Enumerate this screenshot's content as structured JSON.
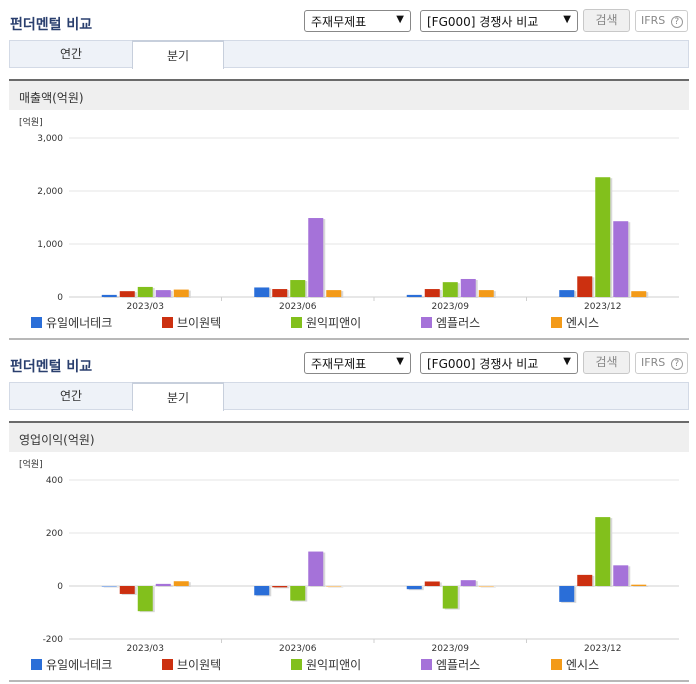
{
  "panels": [
    {
      "title": "펀더멘털 비교",
      "select1": "주재무제표",
      "select2": "[FG000] 경쟁사 비교",
      "search_label": "검색",
      "ifrs_label": "IFRS",
      "help_label": "?",
      "tabs": [
        "연간",
        "분기"
      ],
      "section_title": "매출액(억원)",
      "unit": "[억원]"
    },
    {
      "title": "펀더멘털 비교",
      "select1": "주재무제표",
      "select2": "[FG000] 경쟁사 비교",
      "search_label": "검색",
      "ifrs_label": "IFRS",
      "help_label": "?",
      "tabs": [
        "연간",
        "분기"
      ],
      "section_title": "영업이익(억원)",
      "unit": "[억원]"
    }
  ],
  "chart_data": [
    {
      "type": "bar",
      "title": "매출액(억원)",
      "ylabel": "[억원]",
      "categories": [
        "2023/03",
        "2023/06",
        "2023/09",
        "2023/12"
      ],
      "ylim": [
        0,
        3000
      ],
      "yticks": [
        0,
        1000,
        2000,
        3000
      ],
      "ytick_labels": [
        "0",
        "1,000",
        "2,000",
        "3,000"
      ],
      "series": [
        {
          "name": "유일에너테크",
          "color": "#2a6ed8",
          "values": [
            40,
            180,
            40,
            130
          ]
        },
        {
          "name": "브이원텍",
          "color": "#cc3010",
          "values": [
            110,
            150,
            150,
            390
          ]
        },
        {
          "name": "원익피앤이",
          "color": "#82c01c",
          "values": [
            190,
            320,
            280,
            2260
          ]
        },
        {
          "name": "엠플러스",
          "color": "#a572d9",
          "values": [
            130,
            1490,
            340,
            1430
          ]
        },
        {
          "name": "엔시스",
          "color": "#f39a18",
          "values": [
            140,
            130,
            130,
            110
          ]
        }
      ],
      "grid": true,
      "legend": "bottom"
    },
    {
      "type": "bar",
      "title": "영업이익(억원)",
      "ylabel": "[억원]",
      "categories": [
        "2023/03",
        "2023/06",
        "2023/09",
        "2023/12"
      ],
      "ylim": [
        -200,
        400
      ],
      "yticks": [
        -200,
        0,
        200,
        400
      ],
      "ytick_labels": [
        "-200",
        "0",
        "200",
        "400"
      ],
      "series": [
        {
          "name": "유일에너테크",
          "color": "#2a6ed8",
          "values": [
            0,
            -35,
            -12,
            -60
          ]
        },
        {
          "name": "브이원텍",
          "color": "#cc3010",
          "values": [
            -30,
            -5,
            17,
            42
          ]
        },
        {
          "name": "원익피앤이",
          "color": "#82c01c",
          "values": [
            -95,
            -55,
            -85,
            260
          ]
        },
        {
          "name": "엠플러스",
          "color": "#a572d9",
          "values": [
            8,
            130,
            22,
            78
          ]
        },
        {
          "name": "엔시스",
          "color": "#f39a18",
          "values": [
            18,
            0,
            0,
            5
          ]
        }
      ],
      "grid": true,
      "legend": "bottom"
    }
  ]
}
